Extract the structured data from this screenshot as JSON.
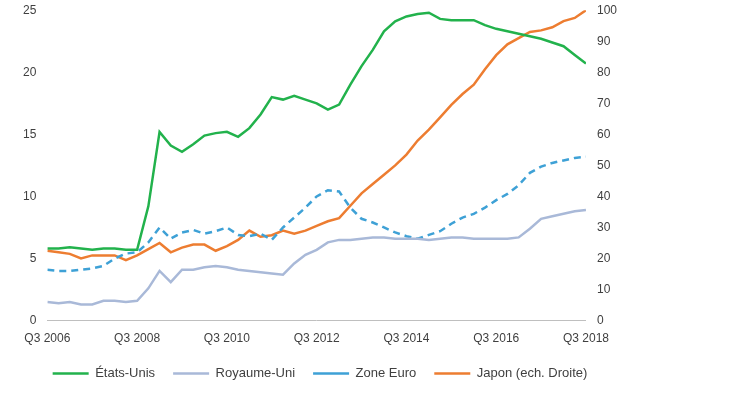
{
  "chart_data": {
    "type": "line",
    "categories": [
      "Q3 2006",
      null,
      null,
      null,
      null,
      null,
      null,
      null,
      "Q3 2008",
      null,
      null,
      null,
      null,
      null,
      null,
      null,
      "Q3 2010",
      null,
      null,
      null,
      null,
      null,
      null,
      null,
      "Q3 2012",
      null,
      null,
      null,
      null,
      null,
      null,
      null,
      "Q3 2014",
      null,
      null,
      null,
      null,
      null,
      null,
      null,
      "Q3 2016",
      null,
      null,
      null,
      null,
      null,
      null,
      null,
      "Q3 2018"
    ],
    "series": [
      {
        "name": "États-Unis",
        "color": "#22b24c",
        "line_style": "solid",
        "values": [
          5.8,
          5.8,
          5.9,
          5.8,
          5.7,
          5.8,
          5.8,
          5.7,
          5.7,
          9.2,
          15.2,
          14.1,
          13.6,
          14.2,
          14.9,
          15.1,
          15.2,
          14.8,
          15.5,
          16.6,
          18.0,
          17.8,
          18.1,
          17.8,
          17.5,
          17.0,
          17.4,
          19.0,
          20.5,
          21.8,
          23.3,
          24.1,
          24.5,
          24.7,
          24.8,
          24.3,
          24.2,
          24.2,
          24.2,
          23.8,
          23.5,
          23.3,
          23.1,
          22.9,
          22.7,
          22.4,
          22.1,
          21.4,
          20.7
        ]
      },
      {
        "name": "Royaume-Uni",
        "color": "#a9b9d8",
        "line_style": "solid",
        "values": [
          1.5,
          1.4,
          1.5,
          1.3,
          1.3,
          1.6,
          1.6,
          1.5,
          1.6,
          2.6,
          4.0,
          3.1,
          4.1,
          4.1,
          4.3,
          4.4,
          4.3,
          4.1,
          4.0,
          3.9,
          3.8,
          3.7,
          4.6,
          5.3,
          5.7,
          6.3,
          6.5,
          6.5,
          6.6,
          6.7,
          6.7,
          6.6,
          6.6,
          6.6,
          6.5,
          6.6,
          6.7,
          6.7,
          6.6,
          6.6,
          6.6,
          6.6,
          6.7,
          7.4,
          8.2,
          8.4,
          8.6,
          8.8,
          8.9
        ]
      },
      {
        "name": "Zone Euro",
        "color": "#3ea1d6",
        "line_style": "dashed",
        "values": [
          4.1,
          4.0,
          4.0,
          4.1,
          4.2,
          4.4,
          5.0,
          5.4,
          5.5,
          6.3,
          7.5,
          6.6,
          7.1,
          7.3,
          7.0,
          7.2,
          7.5,
          6.9,
          6.8,
          7.0,
          6.5,
          7.5,
          8.3,
          9.1,
          10.0,
          10.5,
          10.4,
          9.1,
          8.2,
          7.9,
          7.5,
          7.1,
          6.8,
          6.6,
          6.9,
          7.2,
          7.8,
          8.3,
          8.6,
          9.1,
          9.7,
          10.2,
          10.9,
          11.9,
          12.4,
          12.7,
          12.9,
          13.1,
          13.2
        ]
      },
      {
        "name": "Japon (ech. Droite)",
        "color": "#ed7d31",
        "line_style": "solid",
        "axis": "y2",
        "values": [
          22.5,
          22,
          21.5,
          20,
          21,
          21,
          21,
          19.5,
          21,
          23,
          25,
          22,
          23.5,
          24.5,
          24.5,
          22.5,
          24,
          26,
          29,
          27,
          27.5,
          29,
          28,
          29,
          30.5,
          32,
          33,
          37,
          41,
          44,
          47,
          50,
          53.5,
          58,
          61.5,
          65.5,
          69.5,
          73,
          76,
          81,
          85.5,
          89,
          91,
          93,
          93.5,
          94.5,
          96.5,
          97.5,
          100
        ]
      }
    ],
    "ylim": [
      0,
      25
    ],
    "yticks": [
      0,
      5,
      10,
      15,
      20,
      25
    ],
    "y2lim": [
      0,
      100
    ],
    "y2ticks": [
      0,
      10,
      20,
      30,
      40,
      50,
      60,
      70,
      80,
      90,
      100
    ],
    "grid": false,
    "legend": "bottom"
  }
}
